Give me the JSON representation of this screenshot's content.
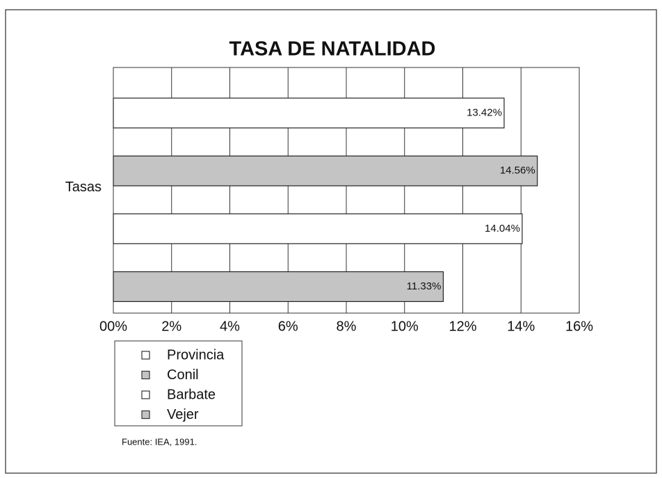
{
  "chart_data": {
    "type": "hbar",
    "title": "TASA DE NATALIDAD",
    "categories": [
      "Tasas"
    ],
    "series": [
      {
        "name": "Provincia",
        "color": "#ffffff",
        "values": [
          13.42
        ],
        "value_labels": [
          "13.42%"
        ]
      },
      {
        "name": "Conil",
        "color": "#c4c4c4",
        "values": [
          14.56
        ],
        "value_labels": [
          "14.56%"
        ]
      },
      {
        "name": "Barbate",
        "color": "#ffffff",
        "values": [
          14.04
        ],
        "value_labels": [
          "14.04%"
        ]
      },
      {
        "name": "Vejer",
        "color": "#c4c4c4",
        "values": [
          11.33
        ],
        "value_labels": [
          "11.33%"
        ]
      }
    ],
    "xlim": [
      0,
      16
    ],
    "xticks": [
      {
        "value": 0,
        "label": "00%"
      },
      {
        "value": 2,
        "label": "2%"
      },
      {
        "value": 4,
        "label": "4%"
      },
      {
        "value": 6,
        "label": "6%"
      },
      {
        "value": 8,
        "label": "8%"
      },
      {
        "value": 10,
        "label": "10%"
      },
      {
        "value": 12,
        "label": "12%"
      },
      {
        "value": 14,
        "label": "14%"
      },
      {
        "value": 16,
        "label": "16%"
      }
    ],
    "grid": true,
    "legend": "bottom-left",
    "source": "Fuente: IEA, 1991."
  }
}
